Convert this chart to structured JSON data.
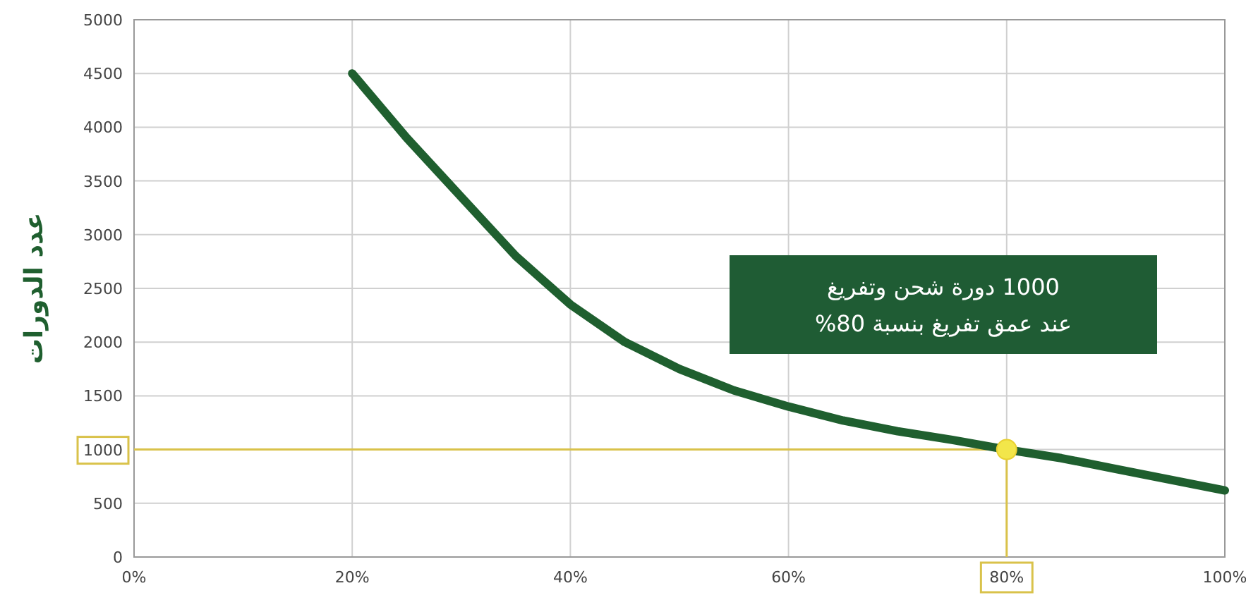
{
  "chart_data": {
    "type": "line",
    "ylabel": "عدد الدورات",
    "annotations": [
      "1000 دورة شحن وتفريغ\nعند عمق تفريغ بنسبة 80%"
    ],
    "xlim": [
      0,
      100
    ],
    "xticks": [
      {
        "value": 0,
        "label": "0%"
      },
      {
        "value": 20,
        "label": "20%"
      },
      {
        "value": 40,
        "label": "40%"
      },
      {
        "value": 60,
        "label": "60%"
      },
      {
        "value": 80,
        "label": "80%"
      },
      {
        "value": 100,
        "label": "100%"
      }
    ],
    "ylim": [
      0,
      5000
    ],
    "yticks": [
      0,
      500,
      1000,
      1500,
      2000,
      2500,
      3000,
      3500,
      4000,
      4500,
      5000
    ],
    "grid": true,
    "series": [
      {
        "color": "#1f5f2f",
        "marker": "none",
        "x": [
          20,
          25,
          30,
          35,
          40,
          45,
          50,
          55,
          60,
          65,
          70,
          75,
          80,
          85,
          90,
          95,
          100
        ],
        "values": [
          4500,
          3900,
          3350,
          2800,
          2350,
          2000,
          1750,
          1550,
          1400,
          1270,
          1170,
          1090,
          1000,
          920,
          820,
          720,
          620
        ]
      },
      {
        "type": "scatter",
        "color": "#f2e64a",
        "marker": "circle",
        "x": [
          80
        ],
        "values": [
          1000
        ]
      }
    ],
    "ref_lines": [
      {
        "axis": "y",
        "value": 1000,
        "color": "#d9c24a"
      },
      {
        "axis": "x",
        "value": 80,
        "color": "#d9c24a"
      }
    ]
  }
}
